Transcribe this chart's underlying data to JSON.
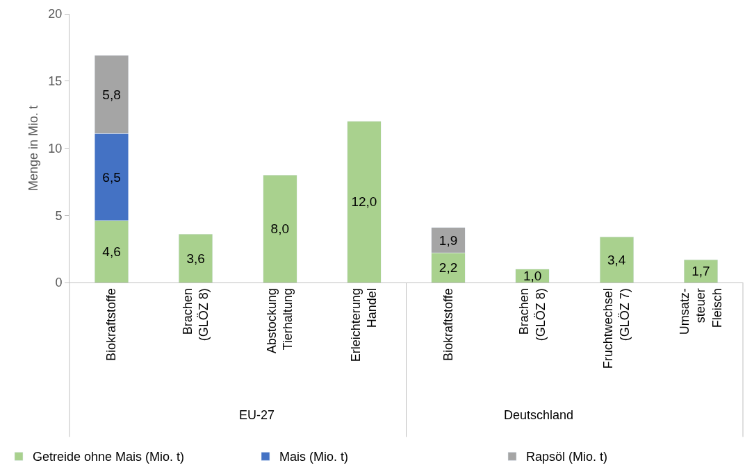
{
  "chart_data": {
    "type": "bar",
    "stacked": true,
    "ylabel": "Menge in Mio. t",
    "categories": [
      "Biokraftstoffe",
      "Brachen\n(GLÖZ 8)",
      "Abstockung\nTierhaltung",
      "Erleichterung\nHandel",
      "Biokraftstoffe",
      "Brachen\n(GLÖZ 8)",
      "Fruchtwechsel\n(GLÖZ 7)",
      "Umsatz-\nsteuer\nFleisch"
    ],
    "series": [
      {
        "name": "Getreide ohne Mais (Mio. t)",
        "color": "#a9d18e",
        "values": [
          4.6,
          3.6,
          8.0,
          12.0,
          2.2,
          1.0,
          3.4,
          1.7
        ],
        "value_labels": [
          "4,6",
          "3,6",
          "8,0",
          "12,0",
          "2,2",
          "1,0",
          "3,4",
          "1,7"
        ]
      },
      {
        "name": "Mais (Mio. t)",
        "color": "#4472c4",
        "values": [
          6.5,
          null,
          null,
          null,
          null,
          null,
          null,
          null
        ],
        "value_labels": [
          "6,5",
          null,
          null,
          null,
          null,
          null,
          null,
          null
        ]
      },
      {
        "name": "Rapsöl (Mio. t)",
        "color": "#a5a5a5",
        "values": [
          5.8,
          null,
          null,
          null,
          1.9,
          null,
          null,
          null
        ],
        "value_labels": [
          "5,8",
          null,
          null,
          null,
          "1,9",
          null,
          null,
          null
        ]
      }
    ],
    "ylim": [
      0,
      20
    ],
    "yticks": [
      0,
      5,
      10,
      15,
      20
    ],
    "legend": "bottom",
    "annotations": [
      "EU-27",
      "Deutschland"
    ]
  }
}
